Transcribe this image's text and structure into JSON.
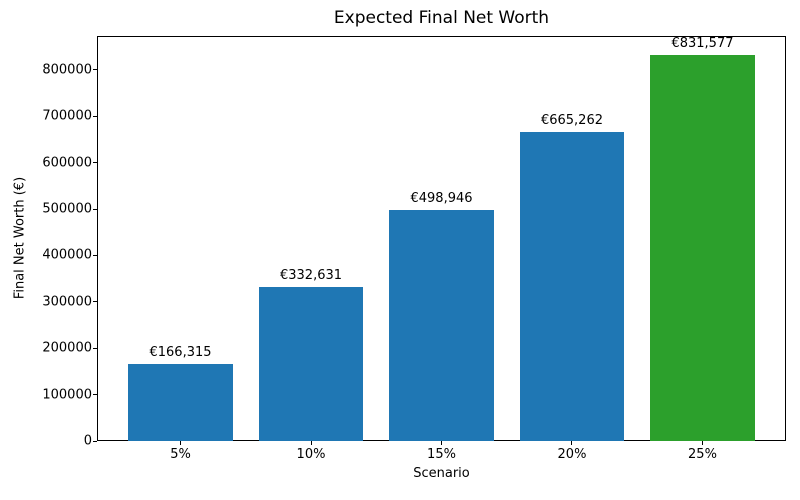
{
  "chart_data": {
    "type": "bar",
    "title": "Expected Final Net Worth",
    "xlabel": "Scenario",
    "ylabel": "Final Net Worth (€)",
    "categories": [
      "5%",
      "10%",
      "15%",
      "20%",
      "25%"
    ],
    "values": [
      166315,
      332631,
      498946,
      665262,
      831577
    ],
    "bar_labels": [
      "€166,315",
      "€332,631",
      "€498,946",
      "€665,262",
      "€831,577"
    ],
    "bar_colors": [
      "#1f77b4",
      "#1f77b4",
      "#1f77b4",
      "#1f77b4",
      "#2ca02c"
    ],
    "ylim": [
      0,
      873156
    ],
    "yticks": [
      0,
      100000,
      200000,
      300000,
      400000,
      500000,
      600000,
      700000,
      800000
    ],
    "grid": false,
    "legend": null,
    "colors": {
      "default_bar": "#1f77b4",
      "highlight_bar": "#2ca02c",
      "text": "#000000",
      "background": "#ffffff"
    }
  }
}
